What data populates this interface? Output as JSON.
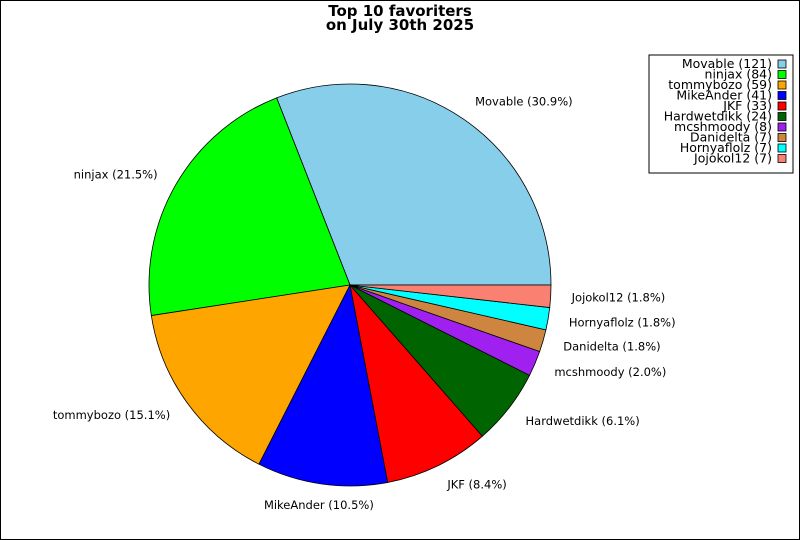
{
  "chart_data": {
    "type": "pie",
    "title": "Top 10 favoriters",
    "subtitle": "on July 30th 2025",
    "legend_position": "top-right",
    "slices": [
      {
        "name": "Movable",
        "value": 121,
        "percent_label": "Movable (30.9%)",
        "legend_label": "Movable (121)",
        "color": "#87ceeb"
      },
      {
        "name": "ninjax",
        "value": 84,
        "percent_label": "ninjax (21.5%)",
        "legend_label": "ninjax (84)",
        "color": "#00ff00"
      },
      {
        "name": "tommybozo",
        "value": 59,
        "percent_label": "tommybozo (15.1%)",
        "legend_label": "tommybozo (59)",
        "color": "#ffa500"
      },
      {
        "name": "MikeAnder",
        "value": 41,
        "percent_label": "MikeAnder (10.5%)",
        "legend_label": "MikeAnder (41)",
        "color": "#0000ff"
      },
      {
        "name": "JKF",
        "value": 33,
        "percent_label": "JKF (8.4%)",
        "legend_label": "JKF (33)",
        "color": "#ff0000"
      },
      {
        "name": "Hardwetdikk",
        "value": 24,
        "percent_label": "Hardwetdikk (6.1%)",
        "legend_label": "Hardwetdikk (24)",
        "color": "#006400"
      },
      {
        "name": "mcshmoody",
        "value": 8,
        "percent_label": "mcshmoody (2.0%)",
        "legend_label": "mcshmoody (8)",
        "color": "#a020f0"
      },
      {
        "name": "Danidelta",
        "value": 7,
        "percent_label": "Danidelta (1.8%)",
        "legend_label": "Danidelta (7)",
        "color": "#cd853f"
      },
      {
        "name": "Hornyaflolz",
        "value": 7,
        "percent_label": "Hornyaflolz (1.8%)",
        "legend_label": "Hornyaflolz (7)",
        "color": "#00ffff"
      },
      {
        "name": "Jojokol12",
        "value": 7,
        "percent_label": "Jojokol12 (1.8%)",
        "legend_label": "Jojokol12 (7)",
        "color": "#fa8072"
      }
    ]
  }
}
